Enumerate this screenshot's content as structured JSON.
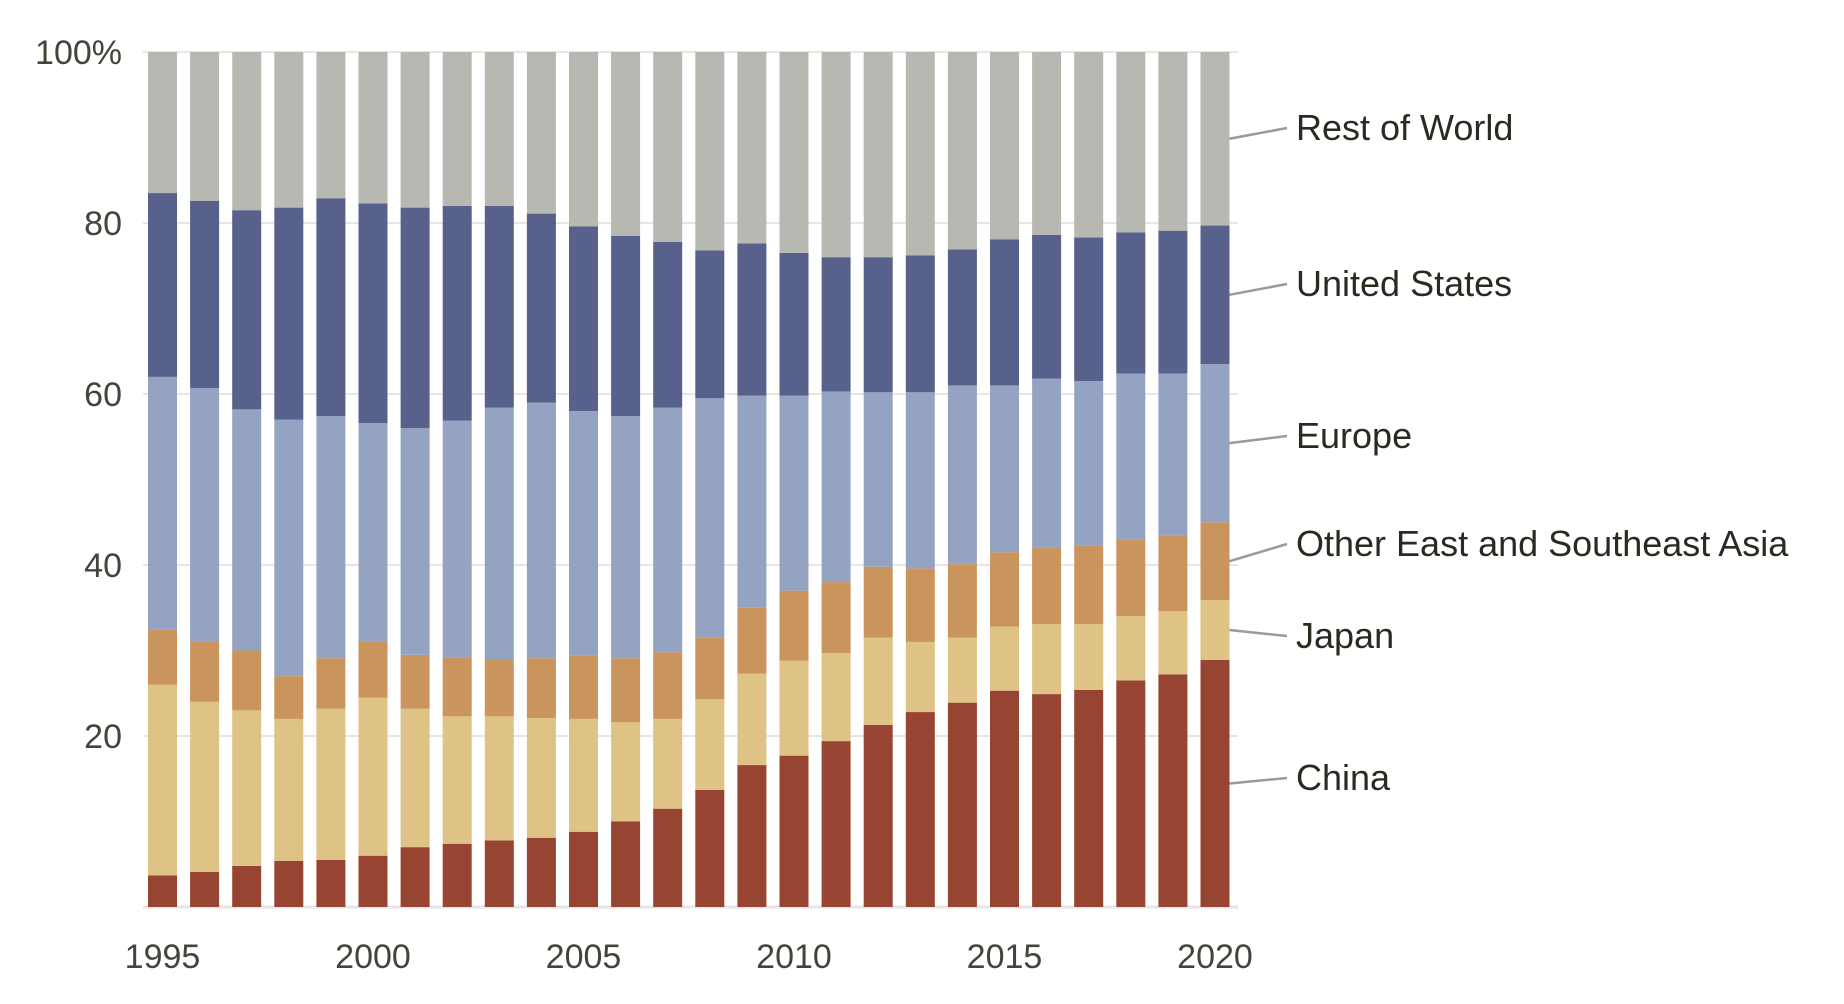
{
  "chart_data": {
    "type": "bar",
    "stacked": true,
    "title": "",
    "xlabel": "",
    "ylabel": "",
    "ylim": [
      0,
      100
    ],
    "y_ticks": [
      20,
      40,
      60,
      80,
      100
    ],
    "y_tick_labels": [
      "20",
      "40",
      "60",
      "80",
      "100%"
    ],
    "x_tick_labels": [
      "1995",
      "2000",
      "2005",
      "2010",
      "2015",
      "2020"
    ],
    "grid": true,
    "legend_placement": "right (direct labels)",
    "categories": [
      1995,
      1996,
      1997,
      1998,
      1999,
      2000,
      2001,
      2002,
      2003,
      2004,
      2005,
      2006,
      2007,
      2008,
      2009,
      2010,
      2011,
      2012,
      2013,
      2014,
      2015,
      2016,
      2017,
      2018,
      2019,
      2020
    ],
    "series": [
      {
        "name": "China",
        "color": "#984432",
        "values": [
          3.7,
          4.1,
          4.8,
          5.4,
          5.5,
          6.0,
          7.0,
          7.4,
          7.8,
          8.1,
          8.8,
          10.0,
          11.5,
          13.7,
          16.6,
          17.7,
          19.4,
          21.3,
          22.8,
          23.9,
          25.3,
          24.9,
          25.4,
          26.5,
          27.2,
          28.9
        ]
      },
      {
        "name": "Japan",
        "color": "#dfc285",
        "values": [
          22.3,
          19.9,
          18.2,
          16.6,
          17.7,
          18.5,
          16.2,
          14.9,
          14.5,
          14.0,
          13.2,
          11.6,
          10.5,
          10.6,
          10.7,
          11.1,
          10.3,
          10.2,
          8.2,
          7.6,
          7.5,
          8.2,
          7.7,
          7.5,
          7.4,
          7.0
        ]
      },
      {
        "name": "Other East and Southeast Asia",
        "color": "#c9955d",
        "values": [
          6.5,
          7.0,
          7.0,
          5.0,
          5.9,
          6.5,
          6.3,
          6.9,
          6.7,
          7.0,
          7.4,
          7.5,
          7.8,
          7.2,
          7.7,
          8.2,
          8.3,
          8.3,
          8.6,
          8.6,
          8.7,
          8.9,
          9.2,
          9.0,
          8.8,
          9.1
        ]
      },
      {
        "name": "Europe",
        "color": "#95a3c3",
        "values": [
          29.5,
          29.7,
          28.2,
          30.0,
          28.3,
          25.6,
          26.5,
          27.7,
          29.4,
          29.9,
          28.6,
          28.3,
          28.6,
          28.0,
          24.8,
          22.8,
          22.3,
          20.4,
          20.6,
          20.9,
          19.5,
          19.8,
          19.2,
          19.4,
          19.0,
          18.5
        ]
      },
      {
        "name": "United States",
        "color": "#57618c",
        "values": [
          21.5,
          21.9,
          23.3,
          24.8,
          25.5,
          25.7,
          25.8,
          25.1,
          23.6,
          22.1,
          21.6,
          21.1,
          19.4,
          17.3,
          17.8,
          16.7,
          15.7,
          15.8,
          16.0,
          15.9,
          17.1,
          16.8,
          16.8,
          16.5,
          16.7,
          16.2
        ]
      },
      {
        "name": "Rest of World",
        "color": "#b7b8b1",
        "values": [
          16.5,
          17.4,
          18.5,
          18.2,
          17.1,
          17.7,
          18.2,
          18.0,
          18.0,
          18.9,
          20.4,
          21.5,
          22.2,
          23.2,
          22.4,
          23.5,
          24.0,
          24.0,
          23.8,
          23.1,
          21.9,
          21.4,
          21.7,
          21.1,
          20.9,
          20.3
        ]
      }
    ],
    "colors": {
      "grid": "#e6e6e4",
      "text": "#45443a",
      "legend_text": "#2b2a20",
      "leader_line": "#9a9a96"
    }
  }
}
